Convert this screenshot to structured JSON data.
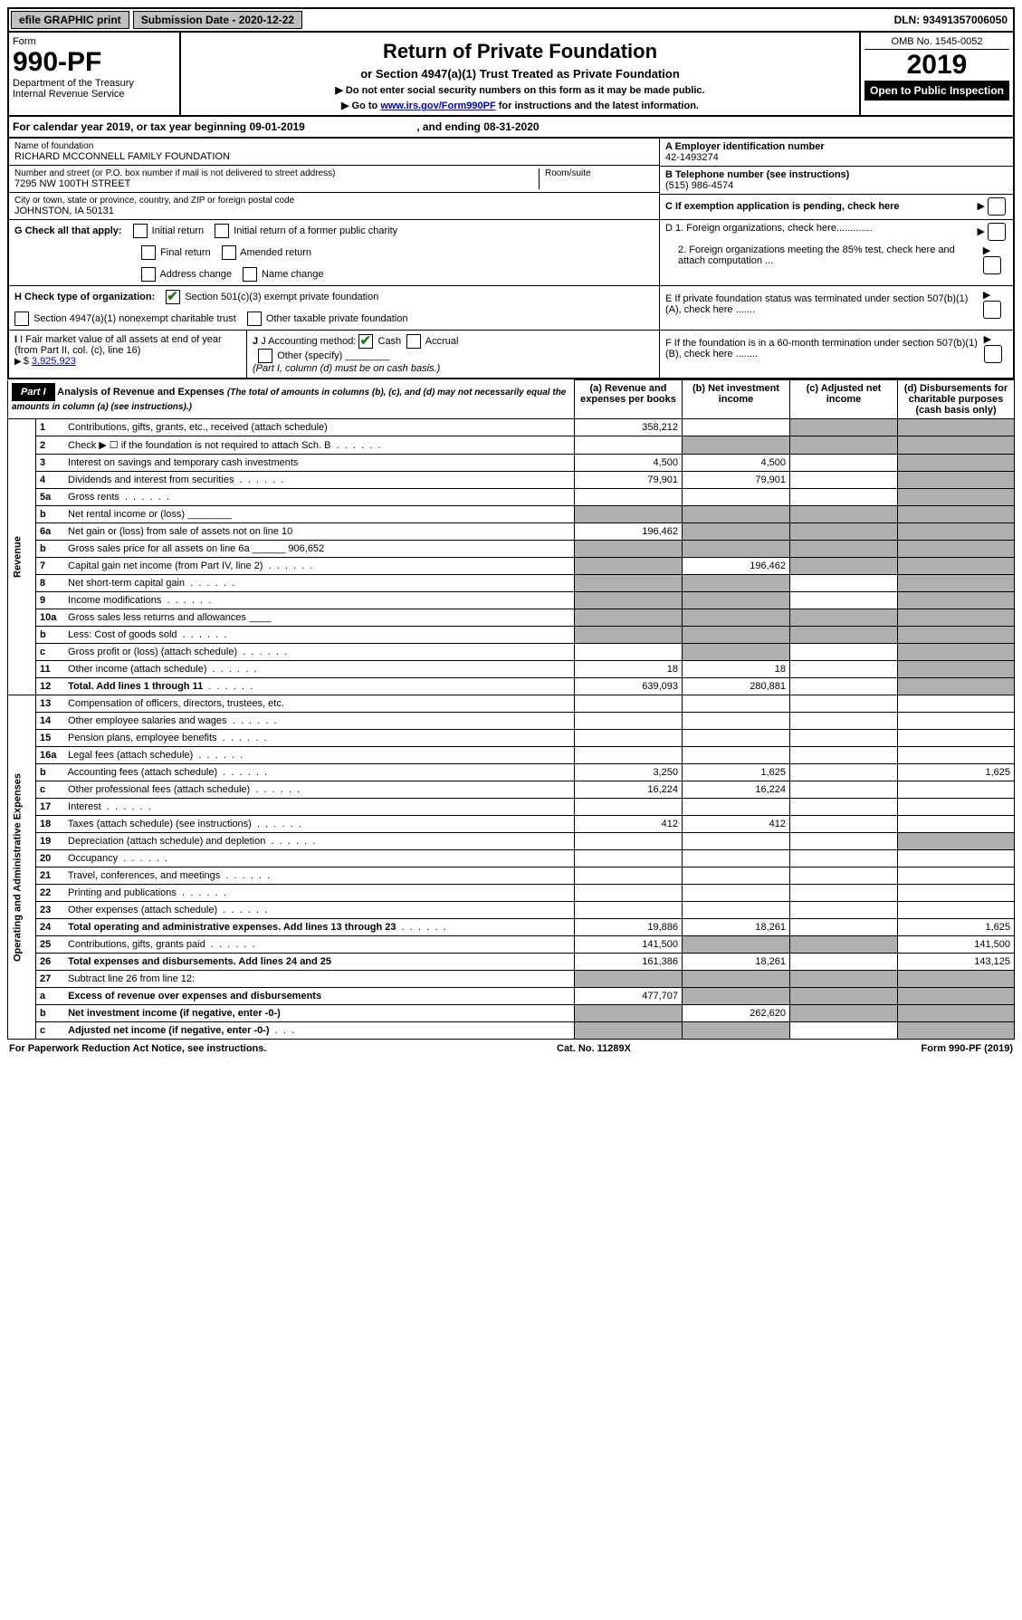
{
  "topbar": {
    "efile": "efile GRAPHIC print",
    "submission_label": "Submission Date - 2020-12-22",
    "dln": "DLN: 93491357006050"
  },
  "header": {
    "form_label": "Form",
    "form_number": "990-PF",
    "dept1": "Department of the Treasury",
    "dept2": "Internal Revenue Service",
    "title": "Return of Private Foundation",
    "subtitle": "or Section 4947(a)(1) Trust Treated as Private Foundation",
    "note1": "▶ Do not enter social security numbers on this form as it may be made public.",
    "note2_pre": "▶ Go to ",
    "note2_link": "www.irs.gov/Form990PF",
    "note2_post": " for instructions and the latest information.",
    "omb": "OMB No. 1545-0052",
    "year": "2019",
    "open": "Open to Public Inspection"
  },
  "calyear": {
    "text_pre": "For calendar year 2019, or tax year beginning ",
    "begin": "09-01-2019",
    "mid": ", and ending ",
    "end": "08-31-2020"
  },
  "entity": {
    "name_label": "Name of foundation",
    "name": "RICHARD MCCONNELL FAMILY FOUNDATION",
    "addr_label": "Number and street (or P.O. box number if mail is not delivered to street address)",
    "room_label": "Room/suite",
    "addr": "7295 NW 100TH STREET",
    "city_label": "City or town, state or province, country, and ZIP or foreign postal code",
    "city": "JOHNSTON, IA  50131",
    "a_label": "A Employer identification number",
    "a_val": "42-1493274",
    "b_label": "B Telephone number (see instructions)",
    "b_val": "(515) 986-4574",
    "c_label": "C If exemption application is pending, check here",
    "d1": "D 1. Foreign organizations, check here.............",
    "d2": "2. Foreign organizations meeting the 85% test, check here and attach computation ...",
    "e_label": "E  If private foundation status was terminated under section 507(b)(1)(A), check here .......",
    "f_label": "F  If the foundation is in a 60-month termination under section 507(b)(1)(B), check here ........"
  },
  "gcheck": {
    "label": "G Check all that apply:",
    "opts": [
      "Initial return",
      "Initial return of a former public charity",
      "Final return",
      "Amended return",
      "Address change",
      "Name change"
    ]
  },
  "hcheck": {
    "label": "H Check type of organization:",
    "o1": "Section 501(c)(3) exempt private foundation",
    "o2": "Section 4947(a)(1) nonexempt charitable trust",
    "o3": "Other taxable private foundation"
  },
  "ij": {
    "i_label": "I Fair market value of all assets at end of year (from Part II, col. (c), line 16)",
    "i_val": "3,925,923",
    "j_label": "J Accounting method:",
    "j_cash": "Cash",
    "j_accrual": "Accrual",
    "j_other": "Other (specify)",
    "j_note": "(Part I, column (d) must be on cash basis.)"
  },
  "part1": {
    "label": "Part I",
    "title": "Analysis of Revenue and Expenses",
    "title_note": "(The total of amounts in columns (b), (c), and (d) may not necessarily equal the amounts in column (a) (see instructions).)",
    "col_a": "(a)   Revenue and expenses per books",
    "col_b": "(b)  Net investment income",
    "col_c": "(c)  Adjusted net income",
    "col_d": "(d)  Disbursements for charitable purposes (cash basis only)"
  },
  "sections": {
    "revenue": "Revenue",
    "opex": "Operating and Administrative Expenses"
  },
  "rows": [
    {
      "n": "1",
      "d": "Contributions, gifts, grants, etc., received (attach schedule)",
      "a": "358,212",
      "b": "",
      "c": "g",
      "dcol": "g"
    },
    {
      "n": "2",
      "d": "Check ▶ ☐ if the foundation is not required to attach Sch. B",
      "dots": true,
      "a": "",
      "b": "g",
      "c": "g",
      "dcol": "g"
    },
    {
      "n": "3",
      "d": "Interest on savings and temporary cash investments",
      "a": "4,500",
      "b": "4,500",
      "c": "",
      "dcol": "g"
    },
    {
      "n": "4",
      "d": "Dividends and interest from securities",
      "dots": true,
      "a": "79,901",
      "b": "79,901",
      "c": "",
      "dcol": "g"
    },
    {
      "n": "5a",
      "d": "Gross rents",
      "dots": true,
      "a": "",
      "b": "",
      "c": "",
      "dcol": "g"
    },
    {
      "n": "b",
      "d": "Net rental income or (loss)  ________",
      "a": "g",
      "b": "g",
      "c": "g",
      "dcol": "g"
    },
    {
      "n": "6a",
      "d": "Net gain or (loss) from sale of assets not on line 10",
      "a": "196,462",
      "b": "g",
      "c": "g",
      "dcol": "g"
    },
    {
      "n": "b",
      "d": "Gross sales price for all assets on line 6a ______ 906,652",
      "a": "g",
      "b": "g",
      "c": "g",
      "dcol": "g"
    },
    {
      "n": "7",
      "d": "Capital gain net income (from Part IV, line 2)",
      "dots": true,
      "a": "g",
      "b": "196,462",
      "c": "g",
      "dcol": "g"
    },
    {
      "n": "8",
      "d": "Net short-term capital gain",
      "dots": true,
      "a": "g",
      "b": "g",
      "c": "",
      "dcol": "g"
    },
    {
      "n": "9",
      "d": "Income modifications",
      "dots": true,
      "a": "g",
      "b": "g",
      "c": "",
      "dcol": "g"
    },
    {
      "n": "10a",
      "d": "Gross sales less returns and allowances  ____",
      "a": "g",
      "b": "g",
      "c": "g",
      "dcol": "g"
    },
    {
      "n": "b",
      "d": "Less: Cost of goods sold",
      "dots": true,
      "a": "g",
      "b": "g",
      "c": "g",
      "dcol": "g"
    },
    {
      "n": "c",
      "d": "Gross profit or (loss) (attach schedule)",
      "dots": true,
      "a": "",
      "b": "g",
      "c": "",
      "dcol": "g"
    },
    {
      "n": "11",
      "d": "Other income (attach schedule)",
      "dots": true,
      "a": "18",
      "b": "18",
      "c": "",
      "dcol": "g"
    },
    {
      "n": "12",
      "d": "Total. Add lines 1 through 11",
      "bold": true,
      "dots": true,
      "a": "639,093",
      "b": "280,881",
      "c": "",
      "dcol": "g"
    }
  ],
  "oprows": [
    {
      "n": "13",
      "d": "Compensation of officers, directors, trustees, etc.",
      "a": "",
      "b": "",
      "c": "",
      "dcol": ""
    },
    {
      "n": "14",
      "d": "Other employee salaries and wages",
      "dots": true,
      "a": "",
      "b": "",
      "c": "",
      "dcol": ""
    },
    {
      "n": "15",
      "d": "Pension plans, employee benefits",
      "dots": true,
      "a": "",
      "b": "",
      "c": "",
      "dcol": ""
    },
    {
      "n": "16a",
      "d": "Legal fees (attach schedule)",
      "dots": true,
      "a": "",
      "b": "",
      "c": "",
      "dcol": ""
    },
    {
      "n": "b",
      "d": "Accounting fees (attach schedule)",
      "dots": true,
      "a": "3,250",
      "b": "1,625",
      "c": "",
      "dcol": "1,625"
    },
    {
      "n": "c",
      "d": "Other professional fees (attach schedule)",
      "dots": true,
      "a": "16,224",
      "b": "16,224",
      "c": "",
      "dcol": ""
    },
    {
      "n": "17",
      "d": "Interest",
      "dots": true,
      "a": "",
      "b": "",
      "c": "",
      "dcol": ""
    },
    {
      "n": "18",
      "d": "Taxes (attach schedule) (see instructions)",
      "dots": true,
      "a": "412",
      "b": "412",
      "c": "",
      "dcol": ""
    },
    {
      "n": "19",
      "d": "Depreciation (attach schedule) and depletion",
      "dots": true,
      "a": "",
      "b": "",
      "c": "",
      "dcol": "g"
    },
    {
      "n": "20",
      "d": "Occupancy",
      "dots": true,
      "a": "",
      "b": "",
      "c": "",
      "dcol": ""
    },
    {
      "n": "21",
      "d": "Travel, conferences, and meetings",
      "dots": true,
      "a": "",
      "b": "",
      "c": "",
      "dcol": ""
    },
    {
      "n": "22",
      "d": "Printing and publications",
      "dots": true,
      "a": "",
      "b": "",
      "c": "",
      "dcol": ""
    },
    {
      "n": "23",
      "d": "Other expenses (attach schedule)",
      "dots": true,
      "a": "",
      "b": "",
      "c": "",
      "dcol": ""
    },
    {
      "n": "24",
      "d": "Total operating and administrative expenses. Add lines 13 through 23",
      "bold": true,
      "dots": true,
      "a": "19,886",
      "b": "18,261",
      "c": "",
      "dcol": "1,625"
    },
    {
      "n": "25",
      "d": "Contributions, gifts, grants paid",
      "dots": true,
      "a": "141,500",
      "b": "g",
      "c": "g",
      "dcol": "141,500"
    },
    {
      "n": "26",
      "d": "Total expenses and disbursements. Add lines 24 and 25",
      "bold": true,
      "a": "161,386",
      "b": "18,261",
      "c": "",
      "dcol": "143,125"
    }
  ],
  "row27": [
    {
      "n": "27",
      "d": "Subtract line 26 from line 12:",
      "a": "g",
      "b": "g",
      "c": "g",
      "dcol": "g"
    },
    {
      "n": "a",
      "d": "Excess of revenue over expenses and disbursements",
      "bold": true,
      "a": "477,707",
      "b": "g",
      "c": "g",
      "dcol": "g"
    },
    {
      "n": "b",
      "d": "Net investment income (if negative, enter -0-)",
      "bold": true,
      "a": "g",
      "b": "262,620",
      "c": "g",
      "dcol": "g"
    },
    {
      "n": "c",
      "d": "Adjusted net income (if negative, enter -0-)",
      "bold": true,
      "dots": true,
      "a": "g",
      "b": "g",
      "c": "",
      "dcol": "g"
    }
  ],
  "footer": {
    "left": "For Paperwork Reduction Act Notice, see instructions.",
    "mid": "Cat. No. 11289X",
    "right": "Form 990-PF (2019)"
  }
}
